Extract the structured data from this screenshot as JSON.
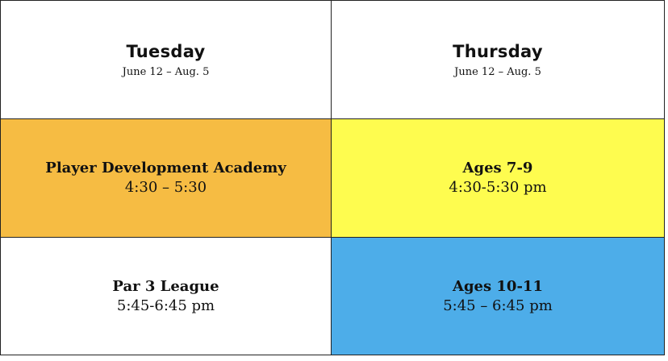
{
  "columns": [
    {
      "day": "Tuesday",
      "dates": "June 12 – Aug. 5"
    },
    {
      "day": "Thursday",
      "dates": "June 12 – Aug. 5"
    }
  ],
  "sessions": {
    "row1": [
      {
        "title": "Player Development Academy",
        "time": "4:30 – 5:30",
        "color": "#F6BC43"
      },
      {
        "title": "Ages 7-9",
        "time": "4:30-5:30 pm",
        "color": "#FEFC4F"
      }
    ],
    "row2": [
      {
        "title": "Par 3 League",
        "time": "5:45-6:45 pm",
        "color": "#FFFFFF"
      },
      {
        "title": "Ages 10-11",
        "time": "5:45 – 6:45 pm",
        "color": "#4DADE9"
      }
    ]
  }
}
